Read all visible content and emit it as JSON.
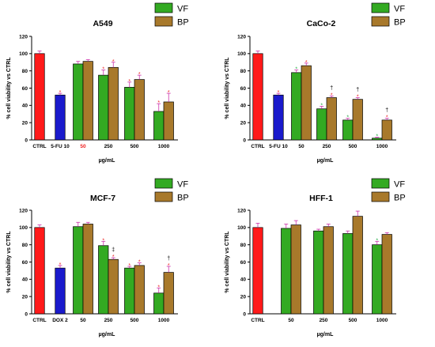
{
  "colors": {
    "ctrl": "#ff1a1a",
    "fu": "#1a1acc",
    "dox": "#1a1acc",
    "vf": "#33aa22",
    "bp": "#a8792b",
    "error": "#cc33aa",
    "star": "#ee2222",
    "star_green": "#22aa44"
  },
  "chart_data": [
    {
      "type": "bar",
      "title": "A549",
      "ylabel": "% cell viability vs CTRL",
      "xlabel": "µg/mL",
      "ylim": [
        0,
        120
      ],
      "yticks": [
        0,
        20,
        40,
        60,
        80,
        100,
        120
      ],
      "legend": {
        "position": "top-right",
        "entries": [
          "VF",
          "BP"
        ]
      },
      "groups": [
        {
          "label": "CTRL",
          "bars": [
            {
              "series": "ctrl",
              "value": 100,
              "err": 3
            }
          ]
        },
        {
          "label": "5-FU 10",
          "bars": [
            {
              "series": "fu",
              "value": 52,
              "err": 2,
              "marks": [
                "*"
              ]
            }
          ]
        },
        {
          "label": "50",
          "label_color": "red",
          "bars": [
            {
              "series": "vf",
              "value": 88,
              "err": 3
            },
            {
              "series": "bp",
              "value": 91,
              "err": 2
            }
          ]
        },
        {
          "label": "250",
          "bars": [
            {
              "series": "vf",
              "value": 75,
              "err": 6,
              "marks": [
                "*"
              ]
            },
            {
              "series": "bp",
              "value": 84,
              "err": 6,
              "marks": [
                "*"
              ]
            }
          ]
        },
        {
          "label": "500",
          "bars": [
            {
              "series": "vf",
              "value": 61,
              "err": 6,
              "marks": [
                "*"
              ]
            },
            {
              "series": "bp",
              "value": 70,
              "err": 5,
              "marks": [
                "*"
              ]
            }
          ]
        },
        {
          "label": "1000",
          "bars": [
            {
              "series": "vf",
              "value": 33,
              "err": 9,
              "marks": [
                "*"
              ]
            },
            {
              "series": "bp",
              "value": 44,
              "err": 10,
              "marks": [
                "*"
              ]
            }
          ]
        }
      ]
    },
    {
      "type": "bar",
      "title": "CaCo-2",
      "ylabel": "% cell viability vs CTRL",
      "xlabel": "µg/mL",
      "ylim": [
        0,
        120
      ],
      "yticks": [
        0,
        20,
        40,
        60,
        80,
        100,
        120
      ],
      "legend": {
        "position": "top-right",
        "entries": [
          "VF",
          "BP"
        ]
      },
      "groups": [
        {
          "label": "CTRL",
          "bars": [
            {
              "series": "ctrl",
              "value": 100,
              "err": 3
            }
          ]
        },
        {
          "label": "5-FU 10",
          "bars": [
            {
              "series": "fu",
              "value": 52,
              "err": 2,
              "marks": [
                "*"
              ]
            }
          ]
        },
        {
          "label": "50",
          "bars": [
            {
              "series": "vf",
              "value": 78,
              "err": 3,
              "marks": [
                "*"
              ]
            },
            {
              "series": "bp",
              "value": 86,
              "err": 3,
              "marks": [
                "*"
              ]
            }
          ]
        },
        {
          "label": "250",
          "bars": [
            {
              "series": "vf",
              "value": 36,
              "err": 3,
              "marks": [
                "*"
              ]
            },
            {
              "series": "bp",
              "value": 49,
              "err": 2,
              "marks": [
                "*",
                "†"
              ]
            }
          ]
        },
        {
          "label": "500",
          "bars": [
            {
              "series": "vf",
              "value": 23,
              "err": 2,
              "marks": [
                "*"
              ]
            },
            {
              "series": "bp",
              "value": 47,
              "err": 2,
              "marks": [
                "*",
                "†"
              ]
            }
          ]
        },
        {
          "label": "1000",
          "bars": [
            {
              "series": "vf",
              "value": 2,
              "err": 1,
              "marks": [
                "*"
              ]
            },
            {
              "series": "bp",
              "value": 23,
              "err": 2,
              "marks": [
                "*",
                "†"
              ]
            }
          ]
        }
      ]
    },
    {
      "type": "bar",
      "title": "MCF-7",
      "ylabel": "% cell viability vs CTRL",
      "xlabel": "µg/mL",
      "ylim": [
        0,
        120
      ],
      "yticks": [
        0,
        20,
        40,
        60,
        80,
        100,
        120
      ],
      "legend": {
        "position": "top-right",
        "entries": [
          "VF",
          "BP"
        ]
      },
      "groups": [
        {
          "label": "CTRL",
          "bars": [
            {
              "series": "ctrl",
              "value": 100,
              "err": 3
            }
          ]
        },
        {
          "label": "DOX 2",
          "bars": [
            {
              "series": "dox",
              "value": 53,
              "err": 3,
              "marks": [
                "*"
              ]
            }
          ]
        },
        {
          "label": "50",
          "bars": [
            {
              "series": "vf",
              "value": 101,
              "err": 5
            },
            {
              "series": "bp",
              "value": 104,
              "err": 2
            }
          ]
        },
        {
          "label": "250",
          "bars": [
            {
              "series": "vf",
              "value": 79,
              "err": 5,
              "marks": [
                "*"
              ]
            },
            {
              "series": "bp",
              "value": 63,
              "err": 2,
              "marks": [
                "*",
                "‡"
              ]
            }
          ]
        },
        {
          "label": "500",
          "bars": [
            {
              "series": "vf",
              "value": 53,
              "err": 2,
              "marks": [
                "*"
              ]
            },
            {
              "series": "bp",
              "value": 56,
              "err": 3,
              "marks": [
                "*"
              ]
            }
          ]
        },
        {
          "label": "1000",
          "bars": [
            {
              "series": "vf",
              "value": 24,
              "err": 6,
              "marks": [
                "*"
              ]
            },
            {
              "series": "bp",
              "value": 48,
              "err": 7,
              "marks": [
                "*",
                "†"
              ]
            }
          ]
        }
      ]
    },
    {
      "type": "bar",
      "title": "HFF-1",
      "ylabel": "% cell viability vs CTRL",
      "xlabel": "µg/mL",
      "ylim": [
        0,
        120
      ],
      "yticks": [
        0,
        20,
        40,
        60,
        80,
        100,
        120
      ],
      "legend": {
        "position": "top-right",
        "entries": [
          "VF",
          "BP"
        ]
      },
      "groups": [
        {
          "label": "CTRL",
          "bars": [
            {
              "series": "ctrl",
              "value": 100,
              "err": 5
            }
          ]
        },
        {
          "label": "50",
          "bars": [
            {
              "series": "vf",
              "value": 99,
              "err": 5
            },
            {
              "series": "bp",
              "value": 103,
              "err": 5
            }
          ]
        },
        {
          "label": "250",
          "bars": [
            {
              "series": "vf",
              "value": 96,
              "err": 2
            },
            {
              "series": "bp",
              "value": 101,
              "err": 3
            }
          ]
        },
        {
          "label": "500",
          "bars": [
            {
              "series": "vf",
              "value": 93,
              "err": 3
            },
            {
              "series": "bp",
              "value": 113,
              "err": 6
            }
          ]
        },
        {
          "label": "1000",
          "bars": [
            {
              "series": "vf",
              "value": 80,
              "err": 4,
              "marks": [
                "*"
              ]
            },
            {
              "series": "bp",
              "value": 92,
              "err": 2
            }
          ]
        }
      ]
    }
  ]
}
